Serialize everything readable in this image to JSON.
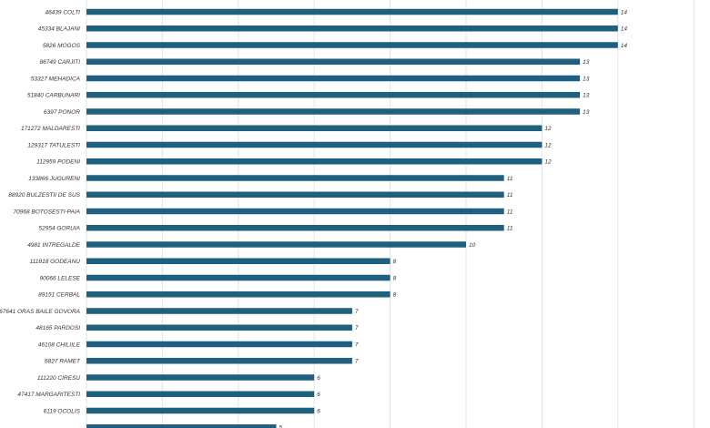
{
  "chart_data": {
    "type": "bar",
    "orientation": "horizontal",
    "title": "",
    "xlabel": "",
    "ylabel": "",
    "xlim": [
      0,
      16.5
    ],
    "gridlines_at": [
      0,
      2,
      4,
      6,
      8,
      10,
      12,
      14,
      16
    ],
    "grid": true,
    "bar_color": "#1f5f7f",
    "categories": [
      "46439 COLTI",
      "45334 BLAJANI",
      "5826 MOGOS",
      "86749 CARJITI",
      "53327 MEHADICA",
      "51840 CARBUNARI",
      "6397 PONOR",
      "171272 MALDARESTI",
      "129317 TATULESTI",
      "112959 PODENI",
      "133866 JUGURENI",
      "88920 BULZESTII DE SUS",
      "70968 BOTOSESTI-PAIA",
      "52954 GORUIA",
      "4981 INTREGALDE",
      "111818 GODEANU",
      "90066 LELESE",
      "89151 CERBAL",
      "167641 ORAS BAILE GOVORA",
      "48165 PARDOSI",
      "46108 CHILIILE",
      "6827 RAMET",
      "111220 CIRESU",
      "47417 MARGARITESTI",
      "6119 OCOLIS",
      ""
    ],
    "values": [
      14,
      14,
      14,
      13,
      13,
      13,
      13,
      12,
      12,
      12,
      11,
      11,
      11,
      11,
      10,
      8,
      8,
      8,
      7,
      7,
      7,
      7,
      6,
      6,
      6,
      5
    ]
  }
}
